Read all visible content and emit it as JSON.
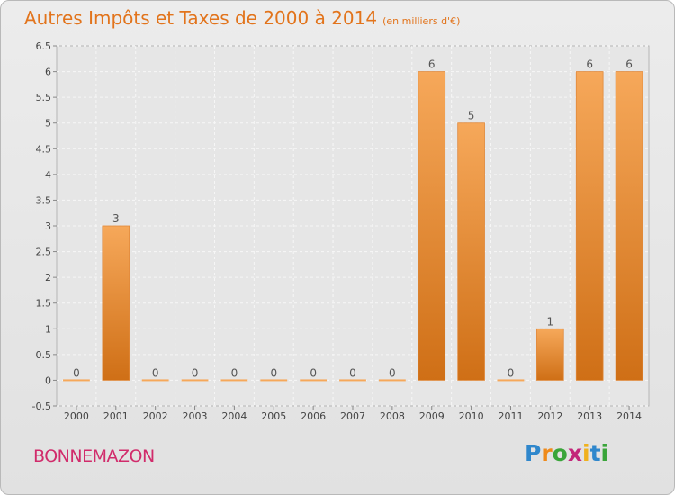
{
  "title": "Autres Impôts et Taxes de 2000 à 2014",
  "subtitle": "(en milliers d'€)",
  "place_name": "BONNEMAZON",
  "logo_text": "Proxiti",
  "colors": {
    "title": "#e2741c",
    "place": "#d12b6b",
    "bar_light": "#f6a85a",
    "bar_dark": "#cf6f16",
    "logo": [
      "#2f87cc",
      "#ef8a1a",
      "#3aa53a",
      "#c3267a",
      "#f0b11d",
      "#2f87cc",
      "#3aa53a"
    ]
  },
  "chart_data": {
    "type": "bar",
    "categories": [
      "2000",
      "2001",
      "2002",
      "2003",
      "2004",
      "2005",
      "2006",
      "2007",
      "2008",
      "2009",
      "2010",
      "2011",
      "2012",
      "2013",
      "2014"
    ],
    "values": [
      0,
      3,
      0,
      0,
      0,
      0,
      0,
      0,
      0,
      6,
      5,
      0,
      1,
      6,
      6
    ],
    "value_labels": [
      "0",
      "3",
      "0",
      "0",
      "0",
      "0",
      "0",
      "0",
      "0",
      "6",
      "5",
      "0",
      "1",
      "6",
      "6"
    ],
    "ylim": [
      -0.5,
      6.5
    ],
    "yticks": [
      -0.5,
      0,
      0.5,
      1,
      1.5,
      2,
      2.5,
      3,
      3.5,
      4,
      4.5,
      5,
      5.5,
      6,
      6.5
    ],
    "ytick_labels": [
      "-0.5",
      "0",
      "0.5",
      "1",
      "1.5",
      "2",
      "2.5",
      "3",
      "3.5",
      "4",
      "4.5",
      "5",
      "5.5",
      "6",
      "6.5"
    ],
    "grid": true,
    "legend": "none"
  }
}
